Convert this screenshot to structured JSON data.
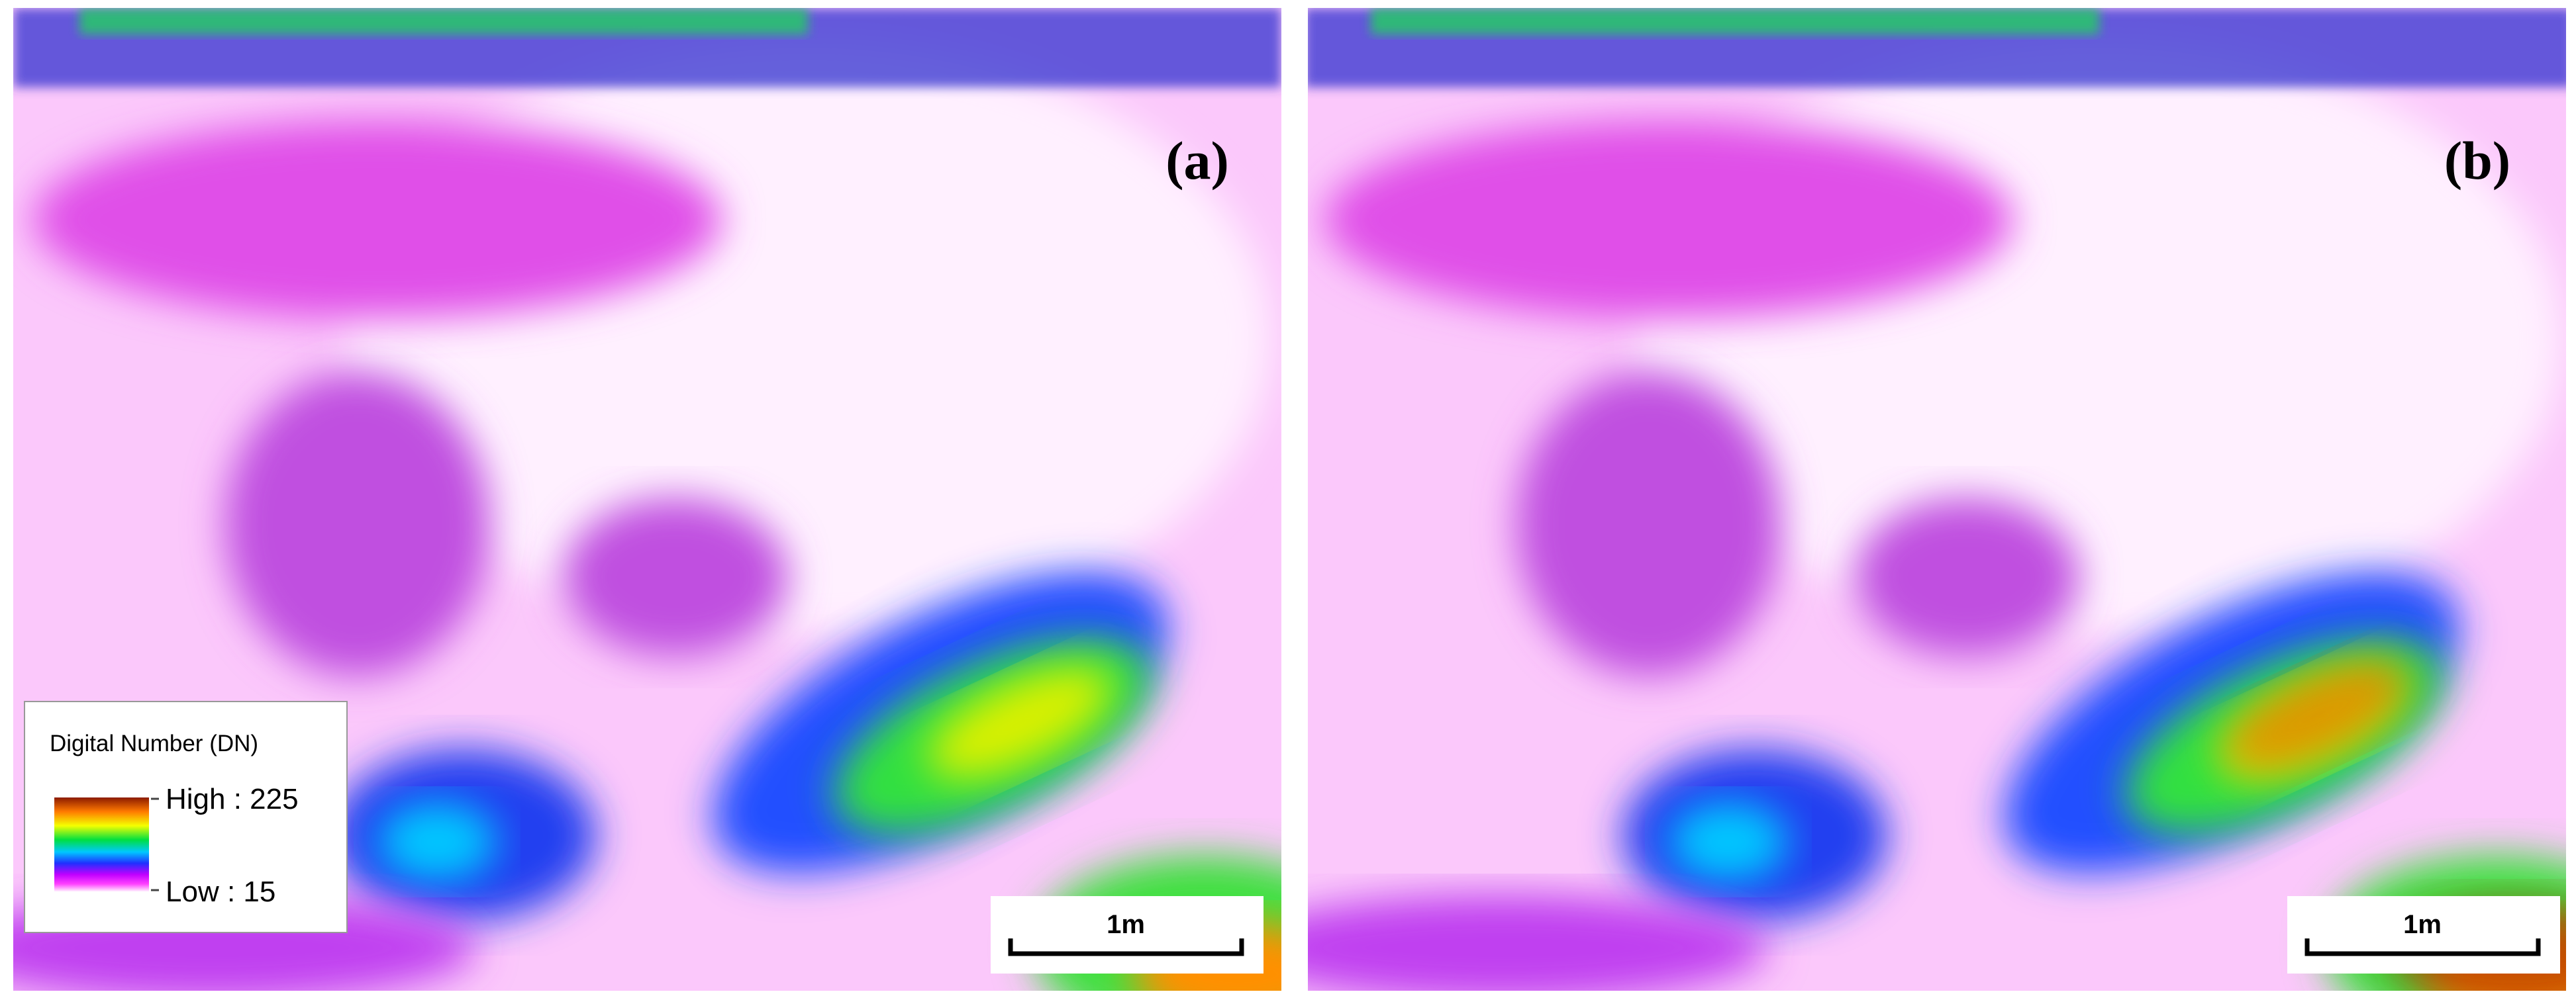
{
  "panels": [
    {
      "label": "(a)",
      "legend": {
        "title": "Digital Number (DN)",
        "high": "High : 225",
        "low": "Low : 15"
      },
      "scale_bar": "1m"
    },
    {
      "label": "(b)",
      "scale_bar": "1m"
    }
  ]
}
